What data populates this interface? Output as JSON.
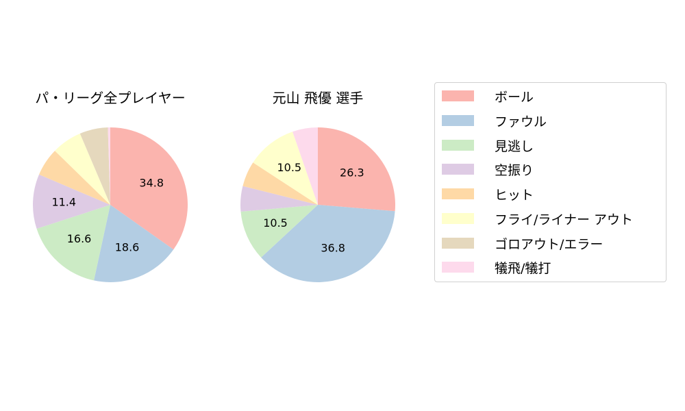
{
  "chart_data": [
    {
      "type": "pie",
      "title": "パ・リーグ全プレイヤー",
      "categories": [
        "ボール",
        "ファウル",
        "見逃し",
        "空振り",
        "ヒット",
        "フライ/ライナー アウト",
        "ゴロアウト/エラー",
        "犠飛/犠打"
      ],
      "values": [
        34.8,
        18.6,
        16.6,
        11.4,
        5.9,
        6.3,
        5.9,
        0.5
      ],
      "shown_labels": [
        "34.8",
        "18.6",
        "16.6",
        "11.4",
        "",
        "",
        "",
        ""
      ],
      "start_angle": 90,
      "direction": "clockwise"
    },
    {
      "type": "pie",
      "title": "元山 飛優  選手",
      "categories": [
        "ボール",
        "ファウル",
        "見逃し",
        "空振り",
        "ヒット",
        "フライ/ライナー アウト",
        "ゴロアウト/エラー",
        "犠飛/犠打"
      ],
      "values": [
        26.3,
        36.8,
        10.5,
        5.3,
        5.3,
        10.5,
        0.0,
        5.3
      ],
      "shown_labels": [
        "26.3",
        "36.8",
        "10.5",
        "",
        "",
        "10.5",
        "",
        ""
      ],
      "start_angle": 90,
      "direction": "clockwise"
    }
  ],
  "colors": [
    "#fbb4ae",
    "#b3cde3",
    "#ccebc5",
    "#decbe4",
    "#fed9a6",
    "#ffffcc",
    "#e5d8bd",
    "#fddaec"
  ],
  "titles": {
    "left": "パ・リーグ全プレイヤー",
    "right": "元山 飛優  選手"
  },
  "legend": {
    "position": "right",
    "items": [
      {
        "label": "ボール",
        "color": "#fbb4ae"
      },
      {
        "label": "ファウル",
        "color": "#b3cde3"
      },
      {
        "label": "見逃し",
        "color": "#ccebc5"
      },
      {
        "label": "空振り",
        "color": "#decbe4"
      },
      {
        "label": "ヒット",
        "color": "#fed9a6"
      },
      {
        "label": "フライ/ライナー アウト",
        "color": "#ffffcc"
      },
      {
        "label": "ゴロアウト/エラー",
        "color": "#e5d8bd"
      },
      {
        "label": "犠飛/犠打",
        "color": "#fddaec"
      }
    ]
  }
}
